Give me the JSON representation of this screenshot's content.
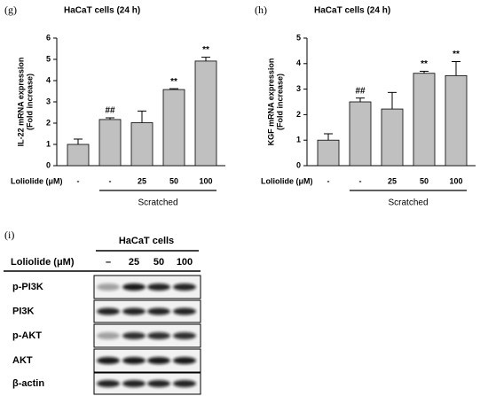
{
  "chart_data": [
    {
      "type": "bar",
      "panel_label": "(g)",
      "title": "HaCaT cells (24 h)",
      "y_label": [
        "IL-22 mRNA expression",
        "(Fold increase)"
      ],
      "treatment_label": "Loliolide (μM)",
      "categories": [
        "-",
        "-",
        "25",
        "50",
        "100"
      ],
      "values": [
        1.0,
        2.17,
        2.02,
        3.58,
        4.92
      ],
      "errors": [
        0.25,
        0.08,
        0.55,
        0.04,
        0.18
      ],
      "annotations": [
        null,
        "##",
        null,
        "**",
        "**"
      ],
      "group_label": "Scratched",
      "color": "#c0c0c0",
      "ylim": [
        0,
        6
      ],
      "yticks": [
        0,
        1,
        2,
        3,
        4,
        5,
        6
      ]
    },
    {
      "type": "bar",
      "panel_label": "(h)",
      "title": "HaCaT cells (24 h)",
      "y_label": [
        "KGF mRNA expression",
        "(Fold increase)"
      ],
      "treatment_label": "Loliolide (μM)",
      "categories": [
        "-",
        "-",
        "25",
        "50",
        "100"
      ],
      "values": [
        1.0,
        2.5,
        2.22,
        3.62,
        3.53
      ],
      "errors": [
        0.25,
        0.15,
        0.65,
        0.08,
        0.55
      ],
      "annotations": [
        null,
        "##",
        null,
        "**",
        "**"
      ],
      "group_label": "Scratched",
      "color": "#c0c0c0",
      "ylim": [
        0,
        5
      ],
      "yticks": [
        0,
        1,
        2,
        3,
        4,
        5
      ]
    }
  ],
  "blot": {
    "panel_label": "(i)",
    "title": "HaCaT cells",
    "treatment_label": "Loliolide (μM)",
    "lanes": [
      "–",
      "25",
      "50",
      "100"
    ],
    "rows": [
      "p-PI3K",
      "PI3K",
      "p-AKT",
      "AKT",
      "β-actin"
    ]
  }
}
